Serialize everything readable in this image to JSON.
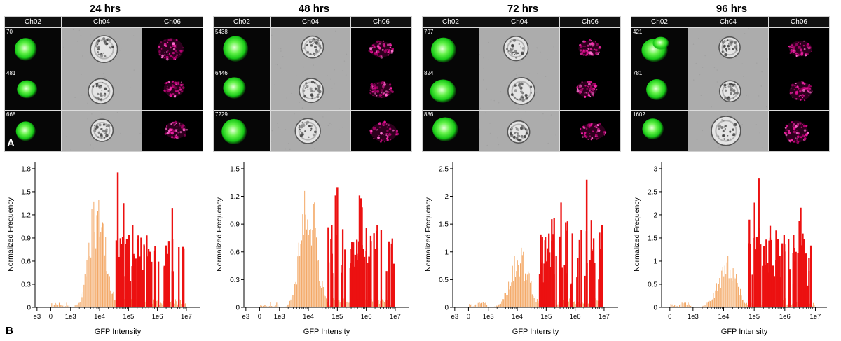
{
  "figure": {
    "panel_a_label": "A",
    "panel_b_label": "B",
    "channels": [
      "Ch02",
      "Ch04",
      "Ch06"
    ],
    "groups": [
      {
        "title": "24 hrs",
        "object_ids": [
          "70",
          "481",
          "668"
        ]
      },
      {
        "title": "48 hrs",
        "object_ids": [
          "5438",
          "6446",
          "7229"
        ]
      },
      {
        "title": "72 hrs",
        "object_ids": [
          "797",
          "824",
          "886"
        ]
      },
      {
        "title": "96 hrs",
        "object_ids": [
          "421",
          "781",
          "1602"
        ]
      }
    ],
    "colors": {
      "gfp_green": "#3ae83a",
      "brightfield_gray": "#acacac",
      "ch06_magenta": "#e80f97",
      "hist_orange": "#f2a25c",
      "hist_red": "#ec1111"
    }
  },
  "chart_data": [
    {
      "type": "bar",
      "style": "histogram",
      "title": "24 hrs",
      "xlabel": "GFP Intensity",
      "ylabel": "Normalized Frequency",
      "x_scale": "log",
      "x_tick_labels": [
        "e3",
        "0",
        "1e3",
        "1e4",
        "1e5",
        "1e6",
        "1e7"
      ],
      "y_ticks": [
        "0",
        "0.3",
        "0.6",
        "0.9",
        "1.2",
        "1.5",
        "1.8"
      ],
      "ylim": [
        0,
        1.8
      ],
      "grid": false,
      "legend": "none",
      "series": [
        {
          "name": "GFP-low population",
          "color": "#f2a25c",
          "shape": "peak",
          "peak_log10x": 3.93,
          "peak_y": 1.5,
          "sigma": 0.27
        },
        {
          "name": "GFP-high population",
          "color": "#ec1111",
          "shape": "sparse-bars",
          "log10x_range": [
            4.55,
            6.95
          ],
          "typical_y": [
            0.3,
            0.95
          ],
          "max_y": 1.75,
          "tallest_log10x": 4.63,
          "bar_count": 68
        }
      ]
    },
    {
      "type": "bar",
      "style": "histogram",
      "title": "48 hrs",
      "xlabel": "GFP Intensity",
      "ylabel": "Normalized Frequency",
      "x_scale": "log",
      "x_tick_labels": [
        "e3",
        "0",
        "1e3",
        "1e4",
        "1e5",
        "1e6",
        "1e7"
      ],
      "y_ticks": [
        "0",
        "0.3",
        "0.6",
        "0.9",
        "1.2",
        "1.5"
      ],
      "ylim": [
        0,
        1.5
      ],
      "grid": false,
      "legend": "none",
      "series": [
        {
          "name": "GFP-low population",
          "color": "#f2a25c",
          "shape": "peak",
          "peak_log10x": 4.0,
          "peak_y": 1.45,
          "sigma": 0.26
        },
        {
          "name": "GFP-high population",
          "color": "#ec1111",
          "shape": "sparse-bars",
          "log10x_range": [
            4.6,
            6.95
          ],
          "typical_y": [
            0.3,
            0.9
          ],
          "max_y": 1.3,
          "tallest_log10x": 5.0,
          "bar_count": 64
        }
      ]
    },
    {
      "type": "bar",
      "style": "histogram",
      "title": "72 hrs",
      "xlabel": "GFP Intensity",
      "ylabel": "Normalized Frequency",
      "x_scale": "log",
      "x_tick_labels": [
        "e3",
        "0",
        "1e3",
        "1e4",
        "1e5",
        "1e6",
        "1e7"
      ],
      "y_ticks": [
        "0",
        "0.5",
        "1",
        "1.5",
        "2",
        "2.5"
      ],
      "ylim": [
        0,
        2.5
      ],
      "grid": false,
      "legend": "none",
      "series": [
        {
          "name": "GFP-low population",
          "color": "#f2a25c",
          "shape": "peak",
          "peak_log10x": 4.08,
          "peak_y": 1.05,
          "sigma": 0.3
        },
        {
          "name": "GFP-high population",
          "color": "#ec1111",
          "shape": "sparse-bars",
          "log10x_range": [
            4.7,
            6.95
          ],
          "typical_y": [
            0.35,
            1.6
          ],
          "max_y": 2.3,
          "tallest_log10x": 6.4,
          "bar_count": 60
        }
      ]
    },
    {
      "type": "bar",
      "style": "histogram",
      "title": "96 hrs",
      "xlabel": "GFP Intensity",
      "ylabel": "Normalized Frequency",
      "x_scale": "log",
      "x_tick_labels": [
        "0",
        "1e3",
        "1e4",
        "1e5",
        "1e6",
        "1e7"
      ],
      "y_ticks": [
        "0",
        "0.5",
        "1",
        "1.5",
        "2",
        "2.5",
        "3"
      ],
      "ylim": [
        0,
        3
      ],
      "grid": false,
      "legend": "none",
      "series": [
        {
          "name": "GFP-low population",
          "color": "#f2a25c",
          "shape": "peak",
          "peak_log10x": 4.12,
          "peak_y": 1.05,
          "sigma": 0.3
        },
        {
          "name": "GFP-high population",
          "color": "#ec1111",
          "shape": "sparse-bars",
          "log10x_range": [
            4.78,
            6.98
          ],
          "typical_y": [
            0.4,
            1.6
          ],
          "max_y": 2.8,
          "tallest_log10x": 5.15,
          "bar_count": 70
        }
      ]
    }
  ]
}
